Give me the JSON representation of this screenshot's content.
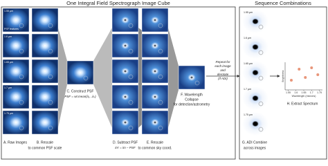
{
  "left_title": "One Integral Field Spectrograph Image Cube",
  "right_title": "Sequence Combinations",
  "raw_images": {
    "wavelengths": [
      "1.55 μm",
      "1.6 μm",
      "1.65 μm",
      "1.7 μm",
      "1.75 μm"
    ],
    "annotation": "PSF features",
    "label": "A. Raw Images"
  },
  "rescale": {
    "label": "B. Rescale",
    "sublabel": "to common PSF scale"
  },
  "construct_psf": {
    "label": "C. Construct PSF",
    "formula": "PSF = wt.mean(λ₁...λₙ)"
  },
  "subtract_psf": {
    "label": "D. Subtract PSF",
    "formula": "im′ = im − PSF"
  },
  "rescale_sky": {
    "label": "E. Rescale",
    "sublabel": "to common sky coord."
  },
  "collapse": {
    "label": "F. Wavelength",
    "label2": "Collapse",
    "sublabel": "for detection/astrometry"
  },
  "repeat": {
    "lines": [
      "Repeat for",
      "each image",
      "and",
      "derotate",
      "(if ADI)"
    ]
  },
  "adi": {
    "wavelengths": [
      "1.55 μm",
      "1.6 μm",
      "1.65 μm",
      "1.7 μm",
      "1.75 μm"
    ],
    "label": "G. ADI Combine",
    "sublabel": "across images"
  },
  "spectrum": {
    "label": "H. Extract Spectrum",
    "ylabel": "Brightness",
    "xlabel": "Wavelength (microns)",
    "xlim": [
      1.53,
      1.77
    ],
    "xticks": [
      1.55,
      1.6,
      1.65,
      1.7,
      1.75
    ],
    "ylim": [
      0,
      1
    ],
    "x": [
      1.57,
      1.62,
      1.66,
      1.7,
      1.74
    ],
    "values": [
      0.35,
      0.75,
      0.45,
      0.8,
      0.55
    ],
    "color": "#e8967a"
  }
}
